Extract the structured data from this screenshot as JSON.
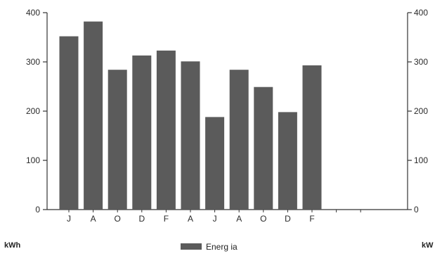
{
  "chart_data": {
    "type": "bar",
    "categories": [
      "J",
      "A",
      "O",
      "D",
      "F",
      "A",
      "J",
      "A",
      "O",
      "D",
      "F",
      "",
      ""
    ],
    "series": [
      {
        "name": "Energ ia",
        "values": [
          352,
          382,
          284,
          313,
          323,
          301,
          188,
          284,
          249,
          198,
          293,
          null,
          null
        ],
        "color": "#5b5b5b"
      }
    ],
    "ylim": [
      0,
      400
    ],
    "yticks": [
      0,
      100,
      200,
      300,
      400
    ],
    "y_left_unit": "kWh",
    "y_right_unit": "kW",
    "y_right_ticks": [
      "0",
      "100",
      "200",
      "300",
      "400"
    ],
    "legend_position": "bottom-center",
    "grid": false
  }
}
